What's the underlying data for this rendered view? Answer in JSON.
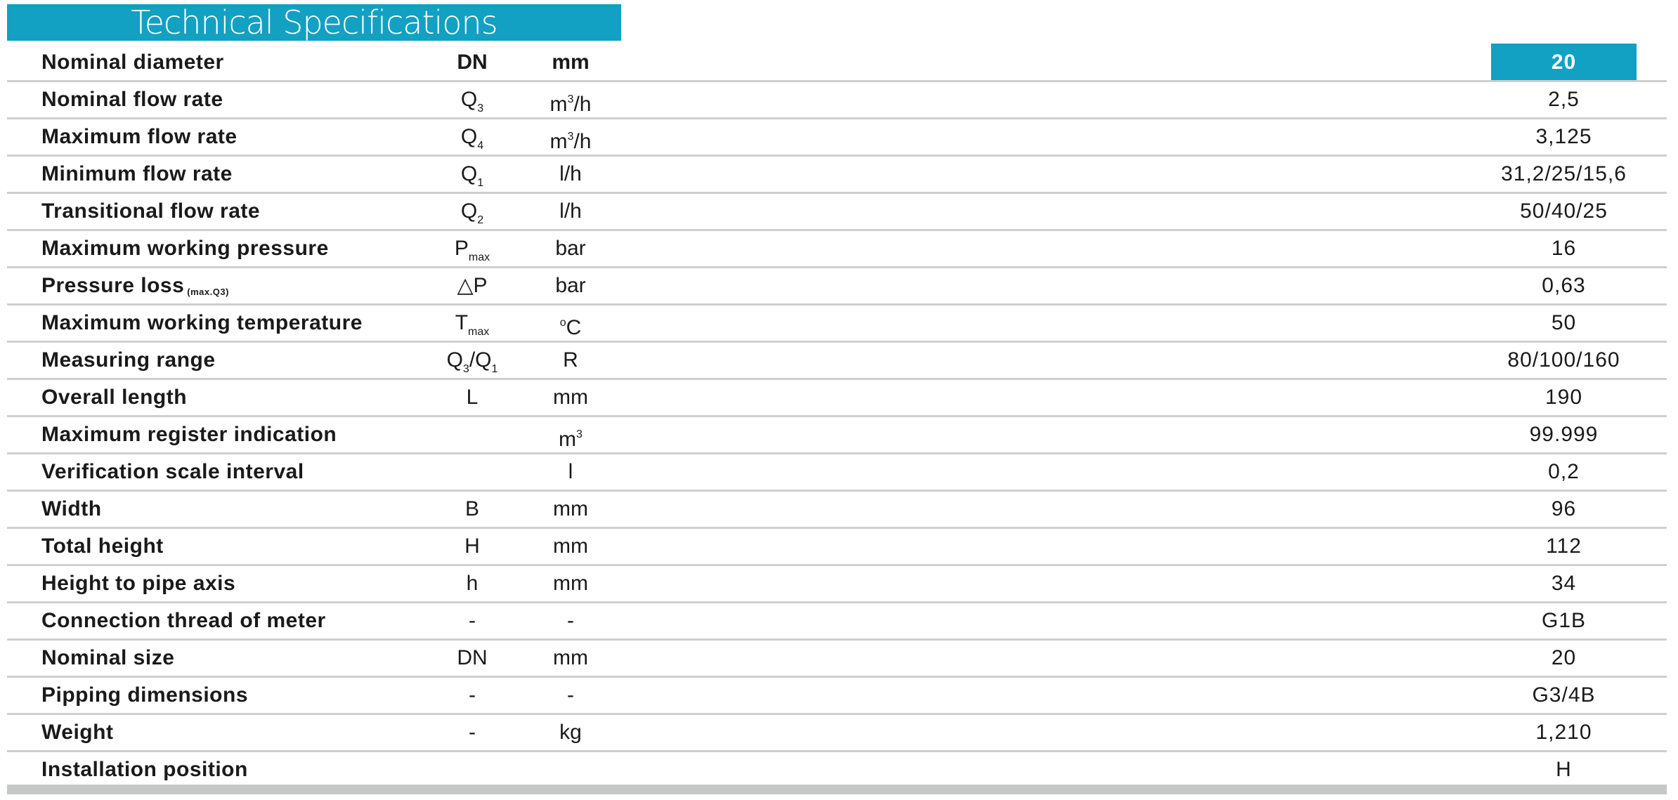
{
  "title": "Technical Specifications",
  "accent_color": "#12a0c3",
  "header": {
    "label": "Nominal diameter",
    "symbol": "DN",
    "unit": "mm",
    "value": "20"
  },
  "rows": [
    {
      "label": "Nominal flow rate",
      "sym": "Q",
      "sym_sub": "3",
      "unit": "m",
      "unit_sup": "3",
      "unit_rest": "/h",
      "value": "2,5"
    },
    {
      "label": "Maximum flow rate",
      "sym": "Q",
      "sym_sub": "4",
      "unit": "m",
      "unit_sup": "3",
      "unit_rest": "/h",
      "value": "3,125"
    },
    {
      "label": "Minimum flow rate",
      "sym": "Q",
      "sym_sub": "1",
      "unit": "l/h",
      "value": "31,2/25/15,6"
    },
    {
      "label": "Transitional flow rate",
      "sym": "Q",
      "sym_sub": "2",
      "unit": "l/h",
      "value": "50/40/25"
    },
    {
      "label": "Maximum working pressure",
      "sym": "P",
      "sym_sub": "max",
      "unit": "bar",
      "value": "16"
    },
    {
      "label": "Pressure loss",
      "label_small": "(max.Q3)",
      "sym": "△P",
      "unit": "bar",
      "value": "0,63"
    },
    {
      "label": "Maximum working temperature",
      "sym": "T",
      "sym_sub": "max",
      "unit_sup_pre": "o",
      "unit": "C",
      "value": "50"
    },
    {
      "label": "Measuring range",
      "sym": "Q",
      "sym_sub": "3",
      "sym_rest": "/Q",
      "sym_sub2": "1",
      "unit": "R",
      "value": "80/100/160"
    },
    {
      "label": "Overall length",
      "sym": "L",
      "unit": "mm",
      "value": "190"
    },
    {
      "label": "Maximum register indication",
      "unit": "m",
      "unit_sup": "3",
      "value": "99.999"
    },
    {
      "label": "Verification scale interval",
      "unit": "l",
      "value": "0,2"
    },
    {
      "label": "Width",
      "sym": "B",
      "unit": "mm",
      "value": "96"
    },
    {
      "label": "Total height",
      "sym": "H",
      "unit": "mm",
      "value": "112"
    },
    {
      "label": "Height to pipe axis",
      "sym": "h",
      "unit": "mm",
      "value": "34"
    },
    {
      "label": "Connection thread of meter",
      "sym": "-",
      "unit": "-",
      "value": "G1B"
    },
    {
      "label": "Nominal size",
      "sym": "DN",
      "unit": "mm",
      "value": "20"
    },
    {
      "label": "Pipping dimensions",
      "sym": "-",
      "unit": "-",
      "value": "G3/4B"
    },
    {
      "label": "Weight",
      "sym": "-",
      "unit": "kg",
      "value": "1,210"
    },
    {
      "label": "Installation position",
      "value": "H"
    }
  ]
}
